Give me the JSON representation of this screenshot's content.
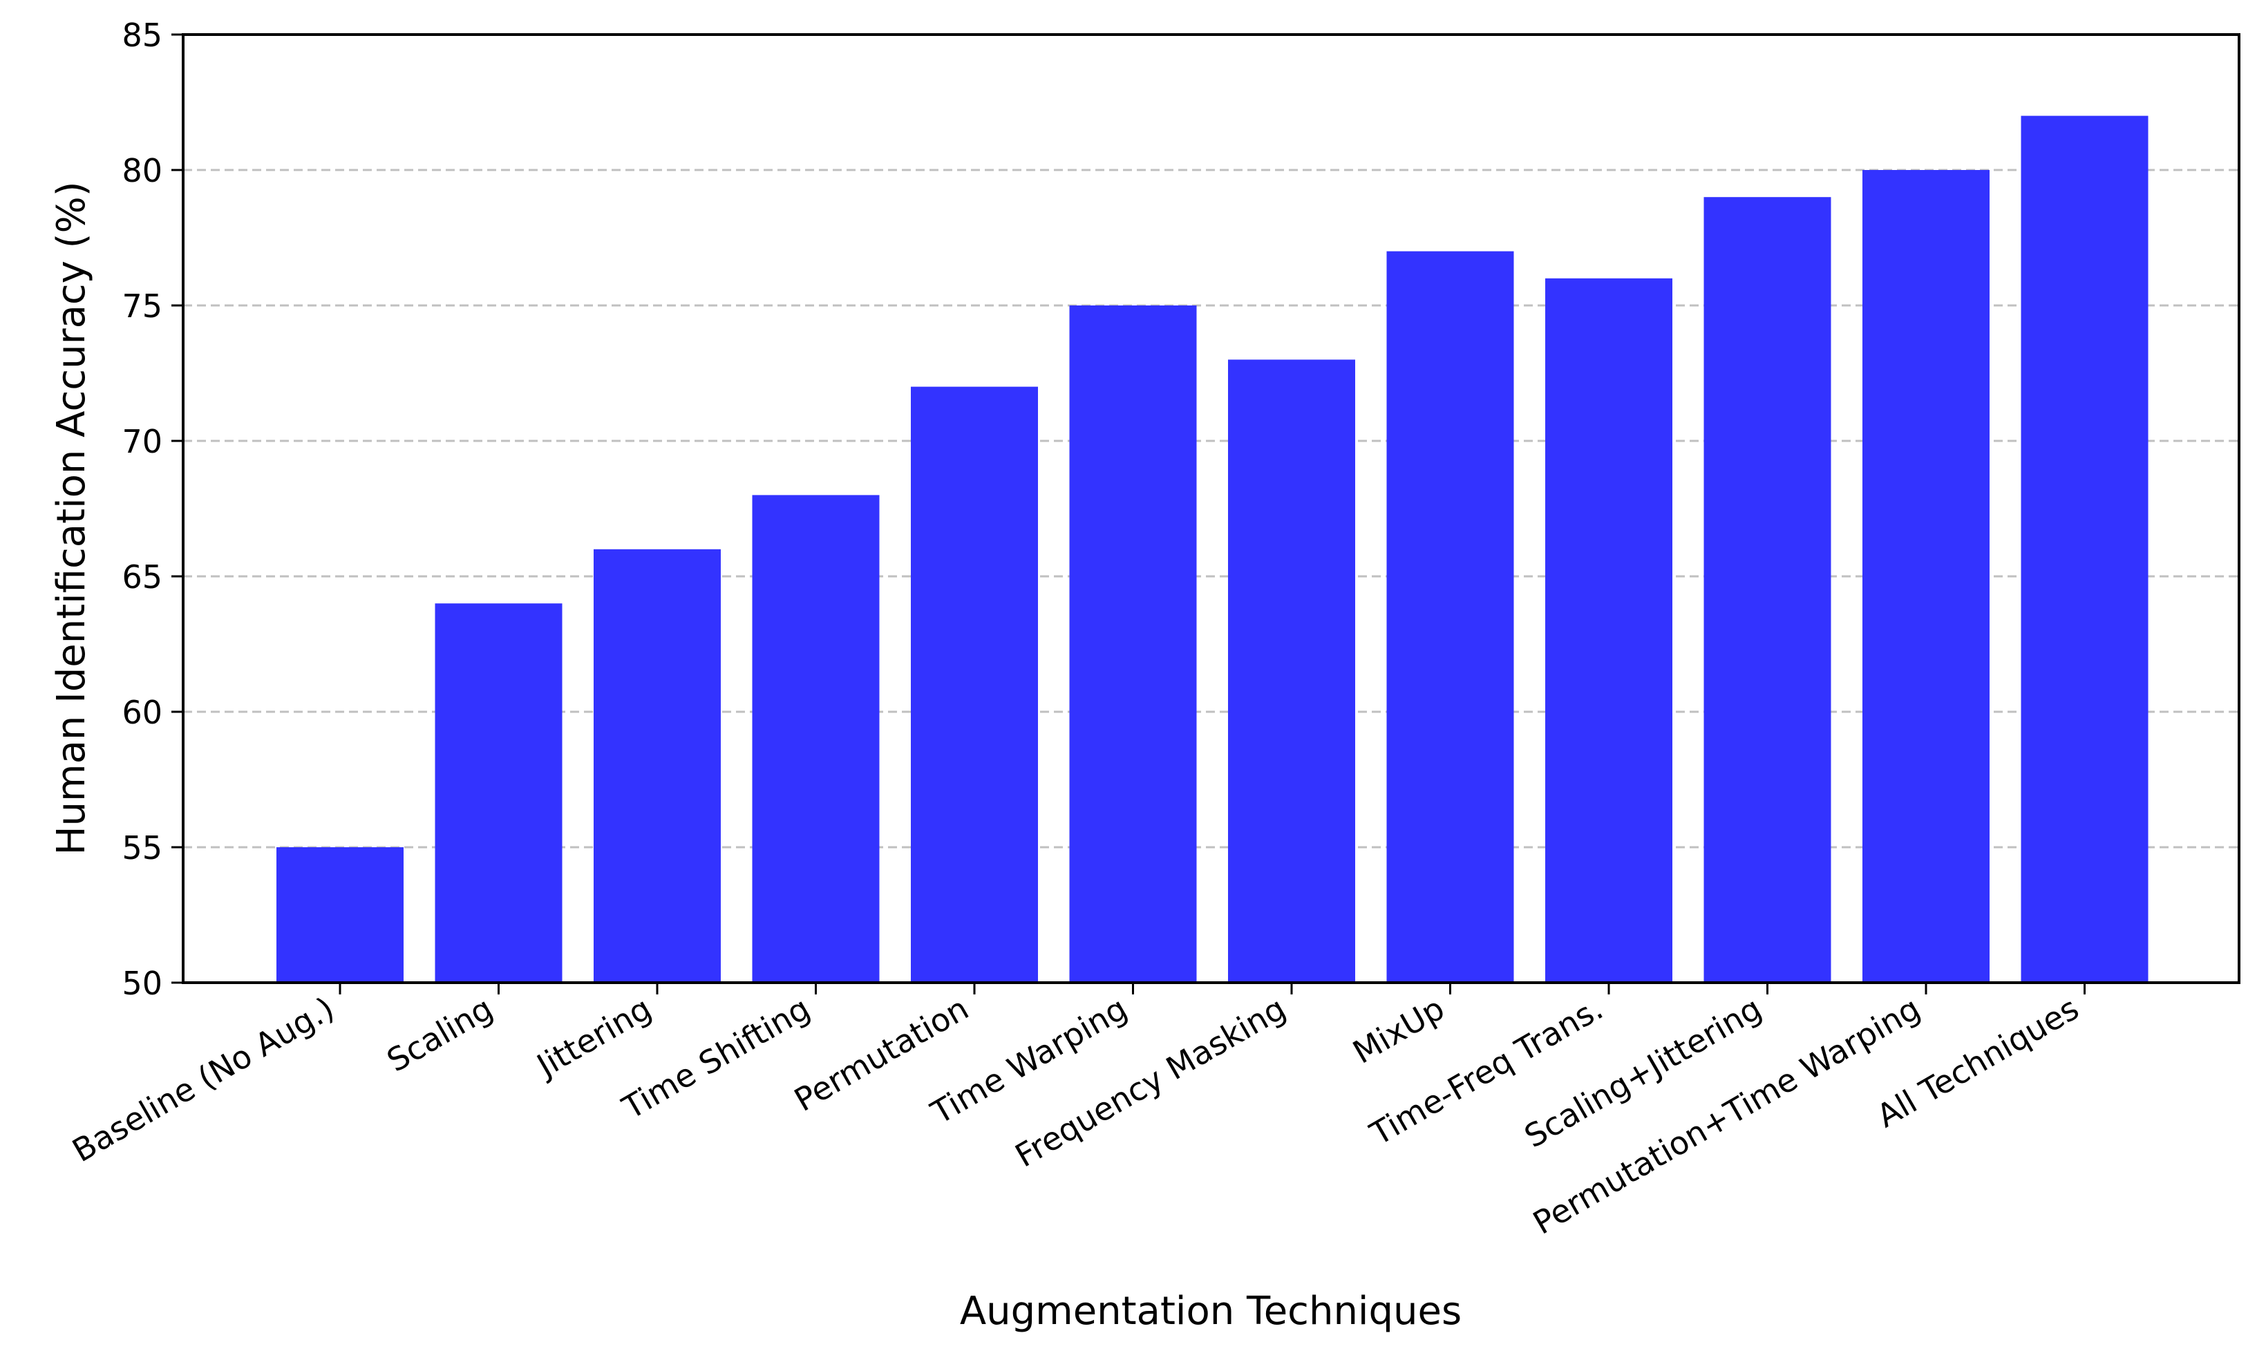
{
  "chart_data": {
    "type": "bar",
    "title": "",
    "xlabel": "Augmentation Techniques",
    "ylabel": "Human Identification Accuracy (%)",
    "categories": [
      "Baseline (No Aug.)",
      "Scaling",
      "Jittering",
      "Time Shifting",
      "Permutation",
      "Time Warping",
      "Frequency Masking",
      "MixUp",
      "Time-Freq Trans.",
      "Scaling+Jittering",
      "Permutation+Time Warping",
      "All Techniques"
    ],
    "values": [
      55,
      64,
      66,
      68,
      72,
      75,
      73,
      77,
      76,
      79,
      80,
      82
    ],
    "ylim": [
      50,
      85
    ],
    "yticks": [
      50,
      55,
      60,
      65,
      70,
      75,
      80,
      85
    ],
    "grid": "y-dashed",
    "legend": "none",
    "colors": {
      "bar": "#3333ff",
      "grid": "#c0c0c0",
      "axis": "#000000"
    }
  }
}
